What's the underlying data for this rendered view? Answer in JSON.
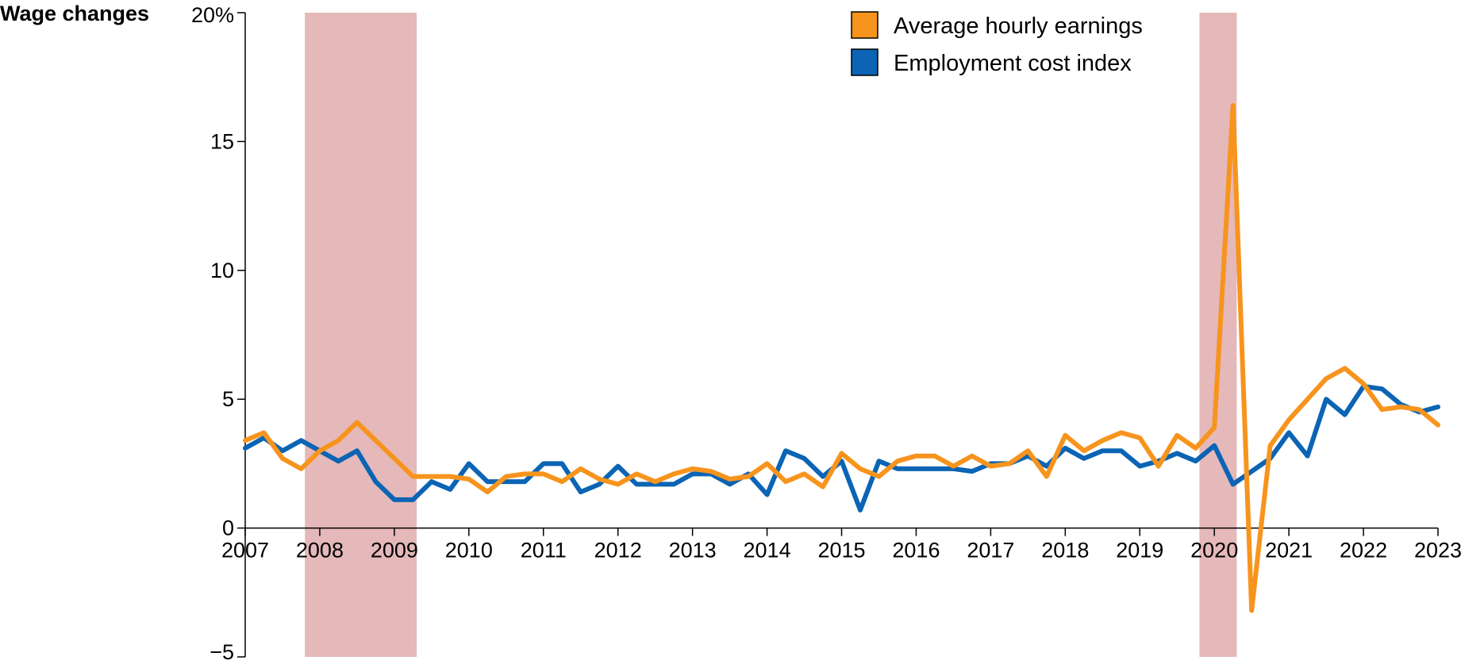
{
  "chart_data": {
    "type": "line",
    "ylabel": "Wage changes",
    "ylim": [
      -5,
      20
    ],
    "xlim": [
      2007,
      2023
    ],
    "y_ticks": [
      {
        "value": -5,
        "label": "−5"
      },
      {
        "value": 0,
        "label": "0"
      },
      {
        "value": 5,
        "label": "5"
      },
      {
        "value": 10,
        "label": "10"
      },
      {
        "value": 15,
        "label": "15"
      },
      {
        "value": 20,
        "label": "20%"
      }
    ],
    "x_ticks": [
      {
        "value": 2007,
        "label": "2007"
      },
      {
        "value": 2008,
        "label": "2008"
      },
      {
        "value": 2009,
        "label": "2009"
      },
      {
        "value": 2010,
        "label": "2010"
      },
      {
        "value": 2011,
        "label": "2011"
      },
      {
        "value": 2012,
        "label": "2012"
      },
      {
        "value": 2013,
        "label": "2013"
      },
      {
        "value": 2014,
        "label": "2014"
      },
      {
        "value": 2015,
        "label": "2015"
      },
      {
        "value": 2016,
        "label": "2016"
      },
      {
        "value": 2017,
        "label": "2017"
      },
      {
        "value": 2018,
        "label": "2018"
      },
      {
        "value": 2019,
        "label": "2019"
      },
      {
        "value": 2020,
        "label": "2020"
      },
      {
        "value": 2021,
        "label": "2021"
      },
      {
        "value": 2022,
        "label": "2022"
      },
      {
        "value": 2023,
        "label": "2023"
      }
    ],
    "recessions": [
      {
        "start": 2007.8,
        "end": 2009.3
      },
      {
        "start": 2019.8,
        "end": 2020.3
      }
    ],
    "legend_position": "top-right",
    "grid": false,
    "series": [
      {
        "name": "Average hourly earnings",
        "color": "#F7941D",
        "x": [
          2007.0,
          2007.25,
          2007.5,
          2007.75,
          2008.0,
          2008.25,
          2008.5,
          2008.75,
          2009.0,
          2009.25,
          2009.5,
          2009.75,
          2010.0,
          2010.25,
          2010.5,
          2010.75,
          2011.0,
          2011.25,
          2011.5,
          2011.75,
          2012.0,
          2012.25,
          2012.5,
          2012.75,
          2013.0,
          2013.25,
          2013.5,
          2013.75,
          2014.0,
          2014.25,
          2014.5,
          2014.75,
          2015.0,
          2015.25,
          2015.5,
          2015.75,
          2016.0,
          2016.25,
          2016.5,
          2016.75,
          2017.0,
          2017.25,
          2017.5,
          2017.75,
          2018.0,
          2018.25,
          2018.5,
          2018.75,
          2019.0,
          2019.25,
          2019.5,
          2019.75,
          2020.0,
          2020.25,
          2020.5,
          2020.75,
          2021.0,
          2021.25,
          2021.5,
          2021.75,
          2022.0,
          2022.25,
          2022.5,
          2022.75,
          2023.0
        ],
        "values": [
          3.4,
          3.7,
          2.7,
          2.3,
          3.0,
          3.4,
          4.1,
          3.4,
          2.7,
          2.0,
          2.0,
          2.0,
          1.9,
          1.4,
          2.0,
          2.1,
          2.1,
          1.8,
          2.3,
          1.9,
          1.7,
          2.1,
          1.8,
          2.1,
          2.3,
          2.2,
          1.9,
          2.0,
          2.5,
          1.8,
          2.1,
          1.6,
          2.9,
          2.3,
          2.0,
          2.6,
          2.8,
          2.8,
          2.4,
          2.8,
          2.4,
          2.5,
          3.0,
          2.0,
          3.6,
          3.0,
          3.4,
          3.7,
          3.5,
          2.4,
          3.6,
          3.1,
          3.9,
          16.4,
          -3.2,
          3.2,
          4.2,
          5.0,
          5.8,
          6.2,
          5.6,
          4.6,
          4.7,
          4.6,
          4.0
        ]
      },
      {
        "name": "Employment cost index",
        "color": "#0B64B4",
        "x": [
          2007.0,
          2007.25,
          2007.5,
          2007.75,
          2008.0,
          2008.25,
          2008.5,
          2008.75,
          2009.0,
          2009.25,
          2009.5,
          2009.75,
          2010.0,
          2010.25,
          2010.5,
          2010.75,
          2011.0,
          2011.25,
          2011.5,
          2011.75,
          2012.0,
          2012.25,
          2012.5,
          2012.75,
          2013.0,
          2013.25,
          2013.5,
          2013.75,
          2014.0,
          2014.25,
          2014.5,
          2014.75,
          2015.0,
          2015.25,
          2015.5,
          2015.75,
          2016.0,
          2016.25,
          2016.5,
          2016.75,
          2017.0,
          2017.25,
          2017.5,
          2017.75,
          2018.0,
          2018.25,
          2018.5,
          2018.75,
          2019.0,
          2019.25,
          2019.5,
          2019.75,
          2020.0,
          2020.25,
          2020.5,
          2020.75,
          2021.0,
          2021.25,
          2021.5,
          2021.75,
          2022.0,
          2022.25,
          2022.5,
          2022.75,
          2023.0
        ],
        "values": [
          3.1,
          3.5,
          3.0,
          3.4,
          3.0,
          2.6,
          3.0,
          1.8,
          1.1,
          1.1,
          1.8,
          1.5,
          2.5,
          1.8,
          1.8,
          1.8,
          2.5,
          2.5,
          1.4,
          1.7,
          2.4,
          1.7,
          1.7,
          1.7,
          2.1,
          2.1,
          1.7,
          2.1,
          1.3,
          3.0,
          2.7,
          2.0,
          2.6,
          0.7,
          2.6,
          2.3,
          2.3,
          2.3,
          2.3,
          2.2,
          2.5,
          2.5,
          2.8,
          2.4,
          3.1,
          2.7,
          3.0,
          3.0,
          2.4,
          2.6,
          2.9,
          2.6,
          3.2,
          1.7,
          2.2,
          2.7,
          3.7,
          2.8,
          5.0,
          4.4,
          5.5,
          5.4,
          4.8,
          4.5,
          4.7
        ]
      }
    ]
  }
}
